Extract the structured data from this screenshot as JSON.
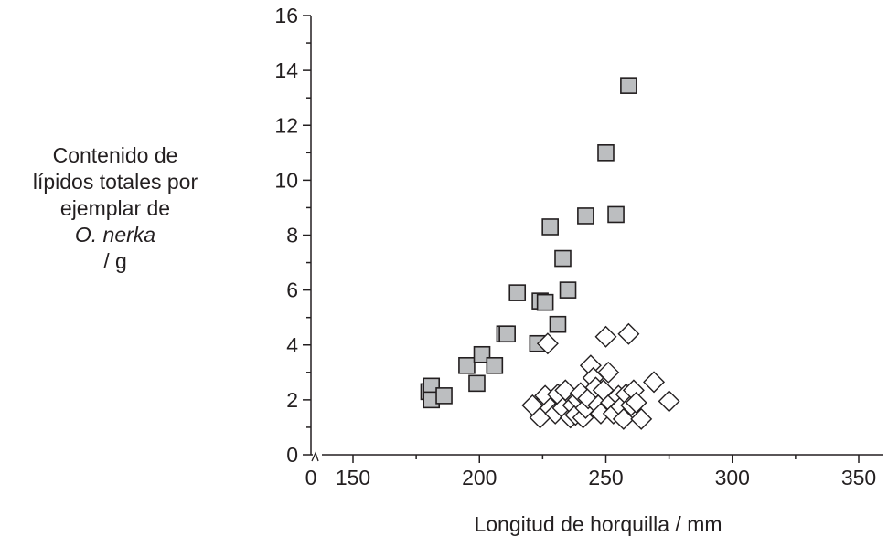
{
  "chart_data": {
    "type": "scatter",
    "xlabel": "Longitud de horquilla / mm",
    "ylabel_lines": [
      "Contenido de",
      "lípidos totales por",
      "ejemplar de",
      "O. nerka",
      "/ g"
    ],
    "x_axis_break": true,
    "x_ticks": [
      "0",
      "150",
      "200",
      "250",
      "300",
      "350"
    ],
    "y_ticks": [
      "0",
      "2",
      "4",
      "6",
      "8",
      "10",
      "12",
      "14",
      "16"
    ],
    "xlim": [
      150,
      350
    ],
    "ylim": [
      0,
      16
    ],
    "grid": false,
    "series": [
      {
        "marker": "square",
        "color": "#bcbec0",
        "points": [
          [
            180,
            2.3
          ],
          [
            181,
            2.5
          ],
          [
            181,
            2.0
          ],
          [
            186,
            2.15
          ],
          [
            195,
            3.25
          ],
          [
            199,
            2.6
          ],
          [
            201,
            3.65
          ],
          [
            206,
            3.25
          ],
          [
            210,
            4.4
          ],
          [
            211,
            4.4
          ],
          [
            215,
            5.9
          ],
          [
            223,
            4.05
          ],
          [
            224,
            5.6
          ],
          [
            226,
            5.55
          ],
          [
            228,
            8.3
          ],
          [
            231,
            4.75
          ],
          [
            233,
            7.15
          ],
          [
            235,
            6.0
          ],
          [
            242,
            8.7
          ],
          [
            250,
            11.0
          ],
          [
            254,
            8.75
          ],
          [
            259,
            13.45
          ],
          [
            224,
            1.75
          ]
        ]
      },
      {
        "marker": "diamond",
        "color": "#ffffff",
        "points": [
          [
            221,
            1.8
          ],
          [
            224,
            1.35
          ],
          [
            226,
            2.15
          ],
          [
            227,
            4.05
          ],
          [
            228,
            1.7
          ],
          [
            230,
            1.5
          ],
          [
            231,
            2.2
          ],
          [
            233,
            1.7
          ],
          [
            234,
            2.35
          ],
          [
            236,
            1.35
          ],
          [
            237,
            1.8
          ],
          [
            238,
            1.45
          ],
          [
            239,
            2.0
          ],
          [
            240,
            2.25
          ],
          [
            241,
            1.35
          ],
          [
            242,
            1.7
          ],
          [
            243,
            2.05
          ],
          [
            244,
            3.25
          ],
          [
            245,
            2.8
          ],
          [
            246,
            2.45
          ],
          [
            247,
            1.8
          ],
          [
            248,
            1.5
          ],
          [
            249,
            2.35
          ],
          [
            250,
            4.3
          ],
          [
            251,
            3.0
          ],
          [
            252,
            1.9
          ],
          [
            253,
            1.5
          ],
          [
            255,
            2.15
          ],
          [
            256,
            1.75
          ],
          [
            257,
            1.3
          ],
          [
            258,
            2.2
          ],
          [
            259,
            4.4
          ],
          [
            260,
            1.8
          ],
          [
            261,
            2.35
          ],
          [
            262,
            1.9
          ],
          [
            264,
            1.3
          ],
          [
            269,
            2.65
          ],
          [
            275,
            1.95
          ]
        ]
      }
    ]
  }
}
